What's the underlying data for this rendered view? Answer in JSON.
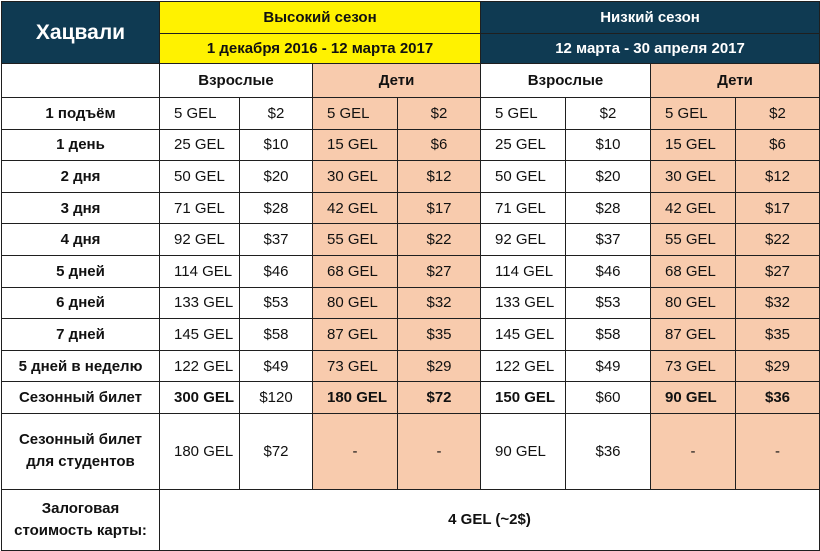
{
  "resort": "Хацвали",
  "high_season": {
    "title": "Высокий сезон",
    "dates": "1 декабря 2016 - 12 марта 2017"
  },
  "low_season": {
    "title": "Низкий сезон",
    "dates": "12 марта - 30 апреля 2017"
  },
  "groups": {
    "adults": "Взрослые",
    "kids": "Дети"
  },
  "rows": [
    {
      "label": "1 подъём",
      "high_adult_gel": "5 GEL",
      "high_adult_usd": "$2",
      "high_kid_gel": "5 GEL",
      "high_kid_usd": "$2",
      "low_adult_gel": "5 GEL",
      "low_adult_usd": "$2",
      "low_kid_gel": "5 GEL",
      "low_kid_usd": "$2"
    },
    {
      "label": "1 день",
      "high_adult_gel": "25 GEL",
      "high_adult_usd": "$10",
      "high_kid_gel": "15 GEL",
      "high_kid_usd": "$6",
      "low_adult_gel": "25 GEL",
      "low_adult_usd": "$10",
      "low_kid_gel": "15 GEL",
      "low_kid_usd": "$6"
    },
    {
      "label": "2 дня",
      "high_adult_gel": "50 GEL",
      "high_adult_usd": "$20",
      "high_kid_gel": "30 GEL",
      "high_kid_usd": "$12",
      "low_adult_gel": "50 GEL",
      "low_adult_usd": "$20",
      "low_kid_gel": "30 GEL",
      "low_kid_usd": "$12"
    },
    {
      "label": "3 дня",
      "high_adult_gel": "71 GEL",
      "high_adult_usd": "$28",
      "high_kid_gel": "42 GEL",
      "high_kid_usd": "$17",
      "low_adult_gel": "71 GEL",
      "low_adult_usd": "$28",
      "low_kid_gel": "42 GEL",
      "low_kid_usd": "$17"
    },
    {
      "label": "4 дня",
      "high_adult_gel": "92 GEL",
      "high_adult_usd": "$37",
      "high_kid_gel": "55 GEL",
      "high_kid_usd": "$22",
      "low_adult_gel": "92 GEL",
      "low_adult_usd": "$37",
      "low_kid_gel": "55 GEL",
      "low_kid_usd": "$22"
    },
    {
      "label": "5 дней",
      "high_adult_gel": "114 GEL",
      "high_adult_usd": "$46",
      "high_kid_gel": "68 GEL",
      "high_kid_usd": "$27",
      "low_adult_gel": "114 GEL",
      "low_adult_usd": "$46",
      "low_kid_gel": "68 GEL",
      "low_kid_usd": "$27"
    },
    {
      "label": "6 дней",
      "high_adult_gel": "133 GEL",
      "high_adult_usd": "$53",
      "high_kid_gel": "80 GEL",
      "high_kid_usd": "$32",
      "low_adult_gel": "133 GEL",
      "low_adult_usd": "$53",
      "low_kid_gel": "80 GEL",
      "low_kid_usd": "$32"
    },
    {
      "label": "7 дней",
      "high_adult_gel": "145 GEL",
      "high_adult_usd": "$58",
      "high_kid_gel": "87 GEL",
      "high_kid_usd": "$35",
      "low_adult_gel": "145 GEL",
      "low_adult_usd": "$58",
      "low_kid_gel": "87 GEL",
      "low_kid_usd": "$35"
    },
    {
      "label": "5 дней в неделю",
      "high_adult_gel": "122 GEL",
      "high_adult_usd": "$49",
      "high_kid_gel": "73 GEL",
      "high_kid_usd": "$29",
      "low_adult_gel": "122 GEL",
      "low_adult_usd": "$49",
      "low_kid_gel": "73 GEL",
      "low_kid_usd": "$29"
    },
    {
      "label": "Сезонный билет",
      "high_adult_gel": "300 GEL",
      "high_adult_usd": "$120",
      "high_kid_gel": "180 GEL",
      "high_kid_usd": "$72",
      "low_adult_gel": "150 GEL",
      "low_adult_usd": "$60",
      "low_kid_gel": "90 GEL",
      "low_kid_usd": "$36"
    }
  ],
  "student_row": {
    "label_line1": "Сезонный билет",
    "label_line2": "для студентов",
    "high_adult_gel": "180 GEL",
    "high_adult_usd": "$72",
    "high_kid_gel": "-",
    "high_kid_usd": "-",
    "low_adult_gel": "90 GEL",
    "low_adult_usd": "$36",
    "low_kid_gel": "-",
    "low_kid_usd": "-"
  },
  "deposit": {
    "label_line1": "Залоговая",
    "label_line2": "стоимость карты:",
    "value": "4 GEL (~2$)"
  },
  "colors": {
    "header_navy": "#0f3a52",
    "high_season_yellow": "#fff200",
    "kids_peach": "#f8cbad"
  }
}
